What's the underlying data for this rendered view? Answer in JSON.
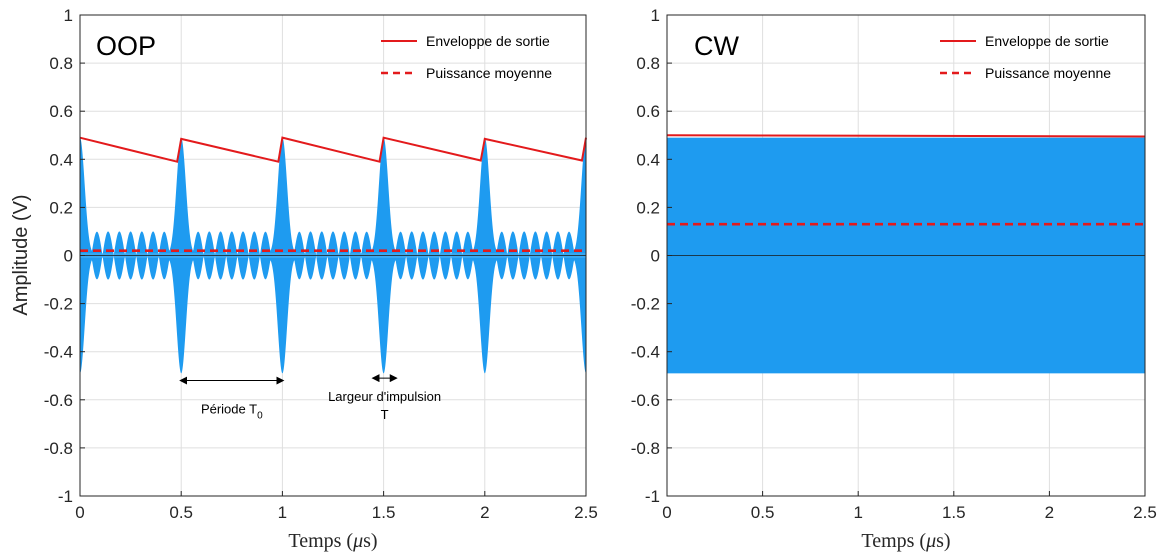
{
  "chart_data": [
    {
      "type": "line",
      "panel_label": "OOP",
      "xlabel": "Temps (μs)",
      "xlabel_parts": {
        "main": "Temps (",
        "mu": "μ",
        "unit": "s)"
      },
      "ylabel": "Amplitude (V)",
      "xlim": [
        0,
        2.5
      ],
      "ylim": [
        -1,
        1
      ],
      "xticks": [
        0,
        0.5,
        1,
        1.5,
        2,
        2.5
      ],
      "xtick_labels": [
        "0",
        "0.5",
        "1",
        "1.5",
        "2",
        "2.5"
      ],
      "yticks": [
        -1,
        -0.8,
        -0.6,
        -0.4,
        -0.2,
        0,
        0.2,
        0.4,
        0.6,
        0.8,
        1
      ],
      "ytick_labels": [
        "-1",
        "-0.8",
        "-0.6",
        "-0.4",
        "-0.2",
        "0",
        "0.2",
        "0.4",
        "0.6",
        "0.8",
        "1"
      ],
      "grid": true,
      "legend_position": "top-right",
      "series": [
        {
          "name": "Enveloppe de sortie",
          "style": "solid",
          "color": "#e31a1c",
          "x": [
            0,
            0.48,
            0.5,
            0.98,
            1.0,
            1.48,
            1.5,
            1.98,
            2.0,
            2.48,
            2.5
          ],
          "y": [
            0.49,
            0.39,
            0.485,
            0.39,
            0.49,
            0.39,
            0.49,
            0.395,
            0.485,
            0.395,
            0.49
          ]
        },
        {
          "name": "Puissance moyenne",
          "style": "dashed",
          "color": "#e31a1c",
          "x": [
            0,
            2.5
          ],
          "y": [
            0.02,
            0.02
          ]
        }
      ],
      "signal": {
        "color": "#1e9bf0",
        "pulse_centers": [
          0,
          0.5,
          1.0,
          1.5,
          2.0,
          2.5
        ],
        "pulse_amplitude": 0.49,
        "ripple_amplitude": 0.1,
        "ripple_lobes_between_pulses": 8
      },
      "annotations": [
        {
          "label": "Période T",
          "subscript": "0",
          "x_from": 0.5,
          "x_to": 1.0,
          "y": -0.52
        },
        {
          "label_line1": "Largeur d'impulsion",
          "label_line2": "T",
          "x_from": 1.45,
          "x_to": 1.56,
          "y": -0.51
        }
      ]
    },
    {
      "type": "line",
      "panel_label": "CW",
      "xlabel": "Temps (μs)",
      "xlabel_parts": {
        "main": "Temps (",
        "mu": "μ",
        "unit": "s)"
      },
      "ylabel": "",
      "xlim": [
        0,
        2.5
      ],
      "ylim": [
        -1,
        1
      ],
      "xticks": [
        0,
        0.5,
        1,
        1.5,
        2,
        2.5
      ],
      "xtick_labels": [
        "0",
        "0.5",
        "1",
        "1.5",
        "2",
        "2.5"
      ],
      "yticks": [
        -1,
        -0.8,
        -0.6,
        -0.4,
        -0.2,
        0,
        0.2,
        0.4,
        0.6,
        0.8,
        1
      ],
      "ytick_labels": [
        "-1",
        "-0.8",
        "-0.6",
        "-0.4",
        "-0.2",
        "0",
        "0.2",
        "0.4",
        "0.6",
        "0.8",
        "1"
      ],
      "grid": true,
      "legend_position": "top-right",
      "series": [
        {
          "name": "Enveloppe de sortie",
          "style": "solid",
          "color": "#e31a1c",
          "x": [
            0,
            2.5
          ],
          "y": [
            0.5,
            0.495
          ]
        },
        {
          "name": "Puissance moyenne",
          "style": "dashed",
          "color": "#e31a1c",
          "x": [
            0,
            2.5
          ],
          "y": [
            0.13,
            0.13
          ]
        }
      ],
      "signal": {
        "color": "#1e9bf0",
        "amplitude": 0.49
      }
    }
  ]
}
